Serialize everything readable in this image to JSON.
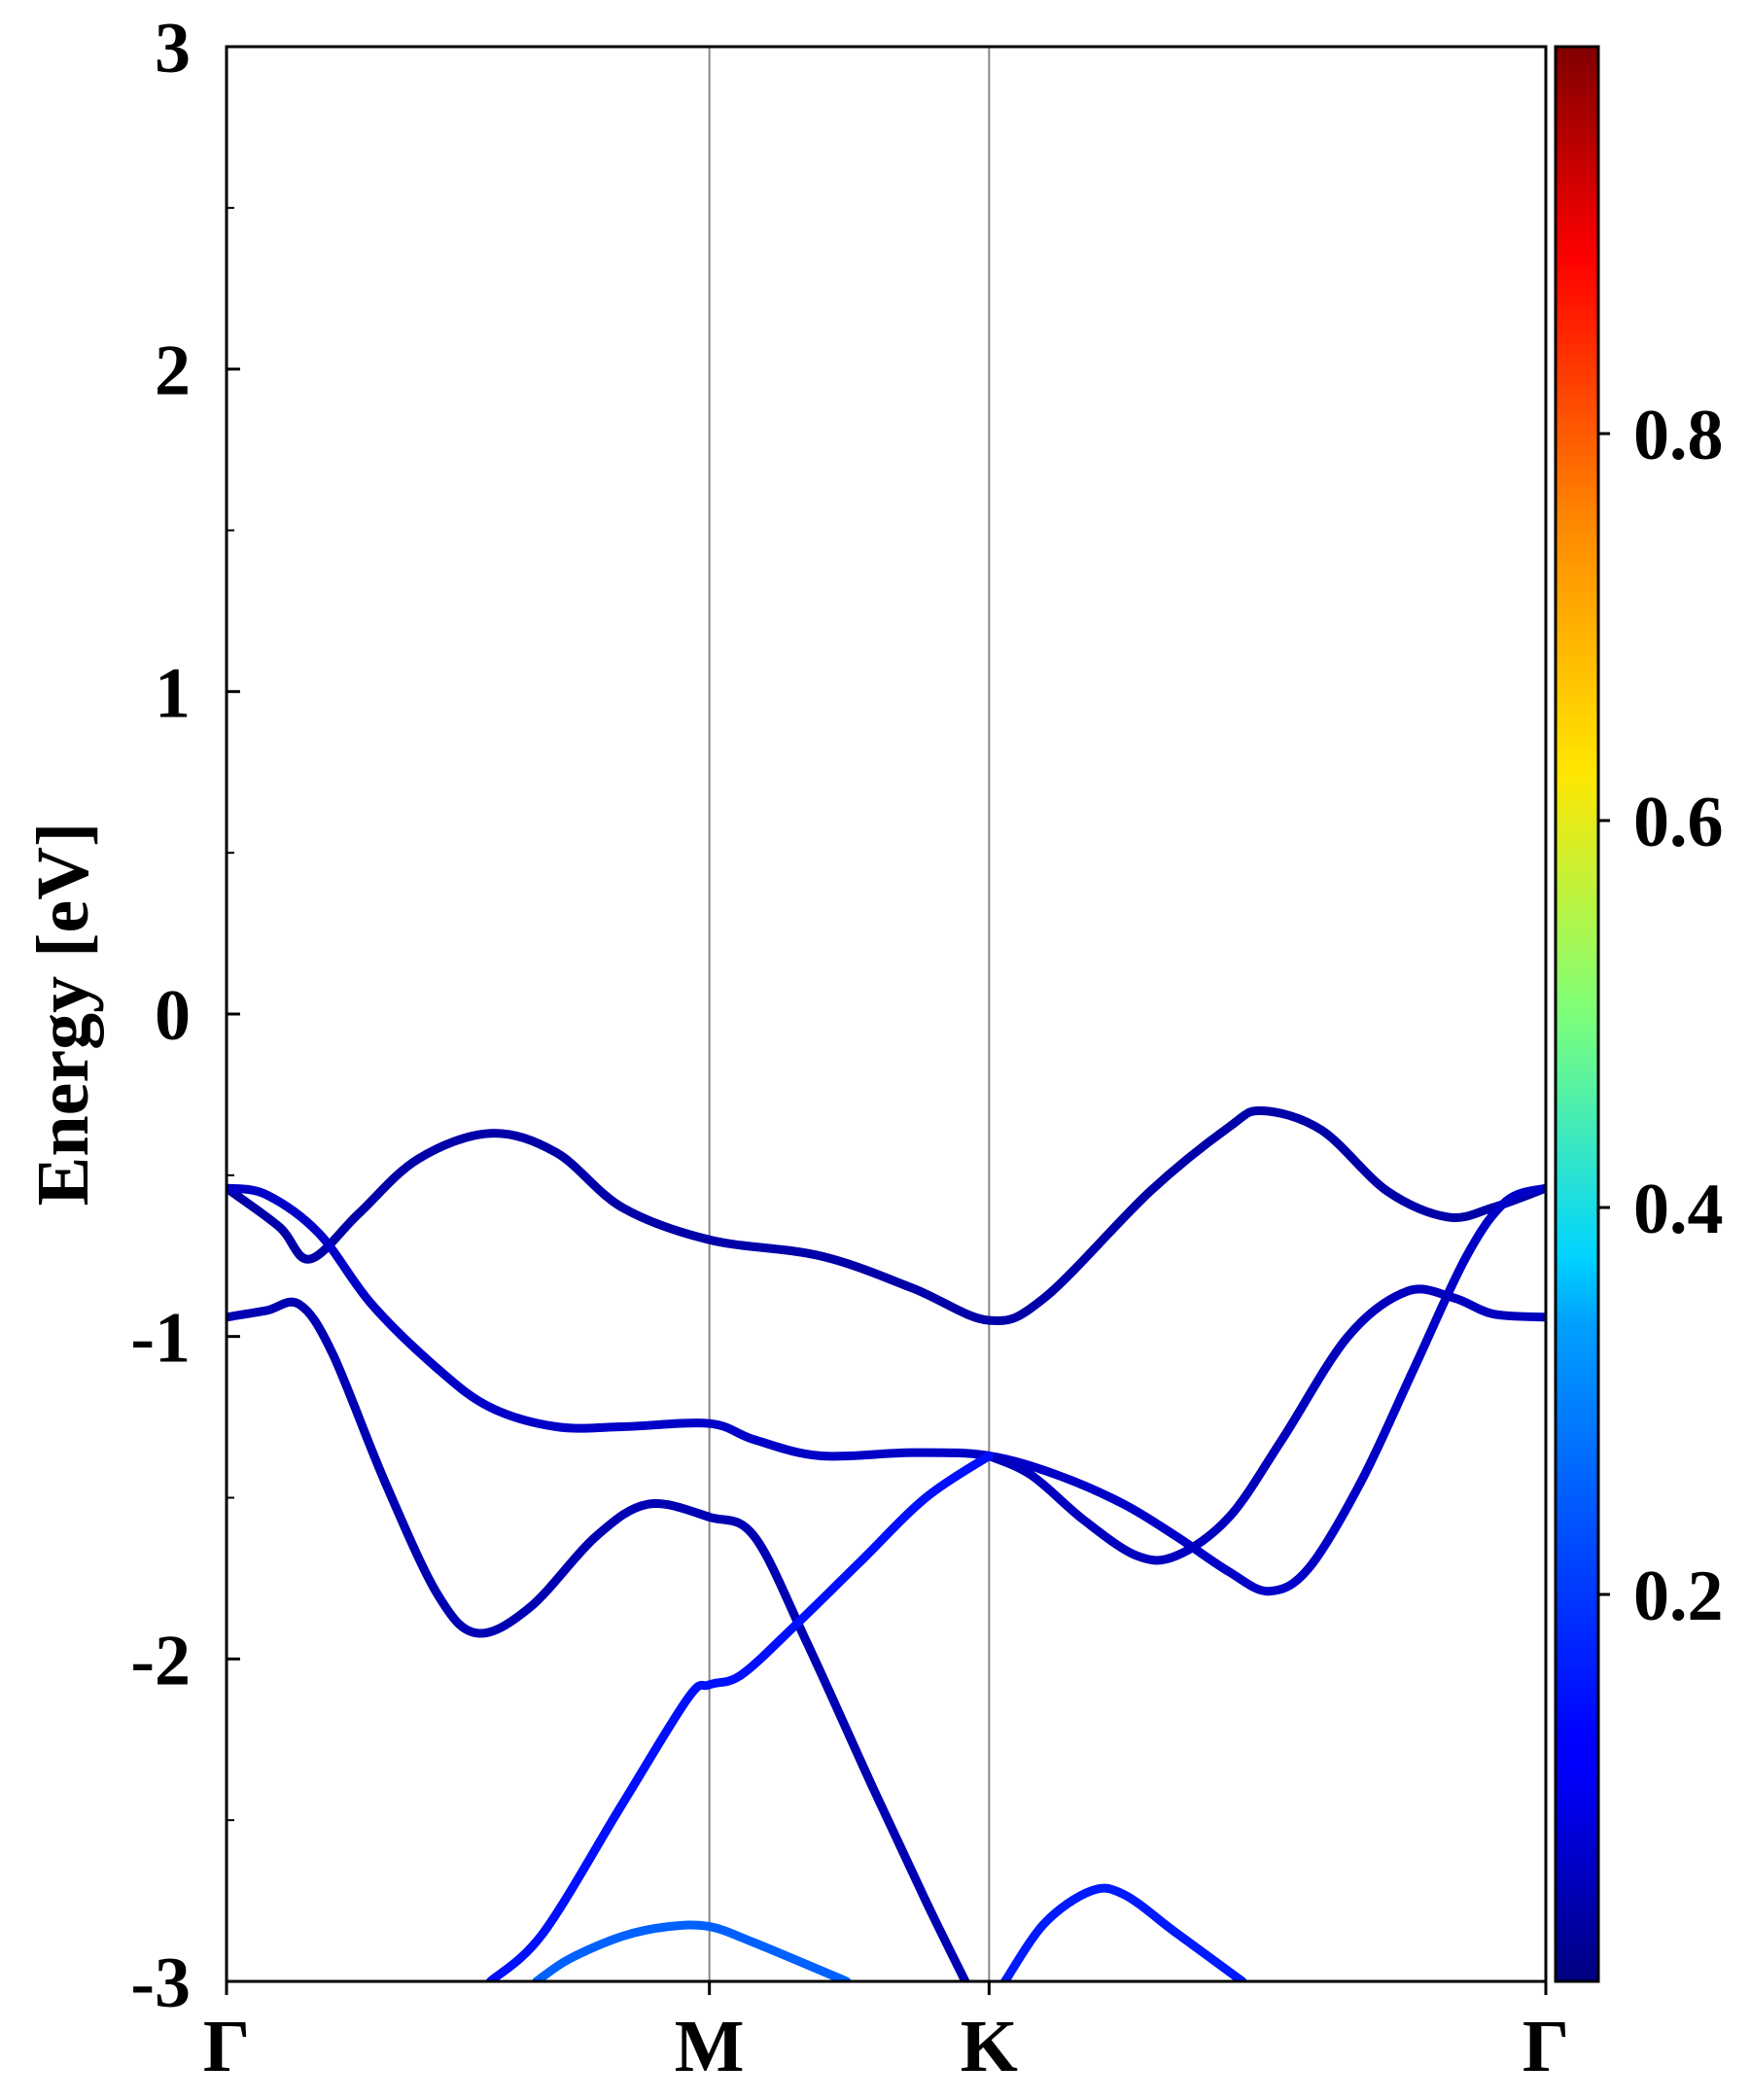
{
  "chart_data": {
    "type": "line",
    "ylabel": "Energy [eV]",
    "ylim": [
      -3,
      3
    ],
    "yticks": [
      "3",
      "2",
      "1",
      "0",
      "-1",
      "-2",
      "-3"
    ],
    "xticks": [
      {
        "label": "Γ",
        "k": 0
      },
      {
        "label": "M",
        "k": 0.366
      },
      {
        "label": "K",
        "k": 0.578
      },
      {
        "label": "Γ",
        "k": 1
      }
    ],
    "colorbar": {
      "range": [
        0,
        1
      ],
      "ticks": [
        "0.2",
        "0.4",
        "0.6",
        "0.8"
      ],
      "colormap": "jet"
    },
    "series": [
      {
        "weight": 0.04,
        "points": [
          [
            0,
            -0.54
          ],
          [
            0.04,
            -0.66
          ],
          [
            0.063,
            -0.76
          ],
          [
            0.1,
            -0.62
          ],
          [
            0.145,
            -0.45
          ],
          [
            0.2,
            -0.37
          ],
          [
            0.25,
            -0.43
          ],
          [
            0.3,
            -0.6
          ],
          [
            0.366,
            -0.7
          ],
          [
            0.45,
            -0.75
          ],
          [
            0.52,
            -0.85
          ],
          [
            0.578,
            -0.95
          ],
          [
            0.62,
            -0.88
          ],
          [
            0.7,
            -0.55
          ],
          [
            0.76,
            -0.35
          ],
          [
            0.785,
            -0.3
          ],
          [
            0.83,
            -0.36
          ],
          [
            0.88,
            -0.55
          ],
          [
            0.926,
            -0.63
          ],
          [
            0.96,
            -0.6
          ],
          [
            1,
            -0.54
          ]
        ]
      },
      {
        "weight": 0.05,
        "points": [
          [
            0,
            -0.94
          ],
          [
            0.03,
            -0.92
          ],
          [
            0.055,
            -0.9
          ],
          [
            0.08,
            -1.05
          ],
          [
            0.12,
            -1.45
          ],
          [
            0.16,
            -1.8
          ],
          [
            0.19,
            -1.92
          ],
          [
            0.23,
            -1.84
          ],
          [
            0.28,
            -1.62
          ],
          [
            0.32,
            -1.52
          ],
          [
            0.366,
            -1.56
          ],
          [
            0.4,
            -1.62
          ],
          [
            0.44,
            -1.95
          ],
          [
            0.49,
            -2.4
          ],
          [
            0.53,
            -2.75
          ],
          [
            0.56,
            -3.0
          ]
        ]
      },
      {
        "weight": 0.07,
        "points": [
          [
            0,
            -0.54
          ],
          [
            0.03,
            -0.56
          ],
          [
            0.07,
            -0.68
          ],
          [
            0.11,
            -0.9
          ],
          [
            0.16,
            -1.1
          ],
          [
            0.2,
            -1.22
          ],
          [
            0.25,
            -1.28
          ],
          [
            0.3,
            -1.28
          ],
          [
            0.366,
            -1.27
          ],
          [
            0.4,
            -1.32
          ],
          [
            0.45,
            -1.37
          ],
          [
            0.52,
            -1.36
          ],
          [
            0.578,
            -1.37
          ],
          [
            0.63,
            -1.43
          ],
          [
            0.68,
            -1.52
          ],
          [
            0.72,
            -1.62
          ],
          [
            0.76,
            -1.73
          ],
          [
            0.79,
            -1.79
          ],
          [
            0.82,
            -1.72
          ],
          [
            0.86,
            -1.45
          ],
          [
            0.9,
            -1.1
          ],
          [
            0.94,
            -0.75
          ],
          [
            0.97,
            -0.58
          ],
          [
            1,
            -0.54
          ]
        ]
      },
      {
        "weight": 0.06,
        "points": [
          [
            0.578,
            -1.37
          ],
          [
            0.61,
            -1.43
          ],
          [
            0.65,
            -1.57
          ],
          [
            0.69,
            -1.68
          ],
          [
            0.72,
            -1.68
          ],
          [
            0.76,
            -1.56
          ],
          [
            0.8,
            -1.32
          ],
          [
            0.85,
            -1.0
          ],
          [
            0.895,
            -0.86
          ],
          [
            0.93,
            -0.88
          ],
          [
            0.96,
            -0.93
          ],
          [
            1,
            -0.94
          ]
        ]
      },
      {
        "weight": 0.14,
        "points": [
          [
            0.2,
            -3.0
          ],
          [
            0.24,
            -2.85
          ],
          [
            0.3,
            -2.45
          ],
          [
            0.35,
            -2.12
          ],
          [
            0.366,
            -2.08
          ],
          [
            0.39,
            -2.05
          ],
          [
            0.43,
            -1.9
          ],
          [
            0.48,
            -1.7
          ],
          [
            0.53,
            -1.5
          ],
          [
            0.578,
            -1.37
          ]
        ]
      },
      {
        "weight": 0.15,
        "points": [
          [
            0.59,
            -3.0
          ],
          [
            0.62,
            -2.82
          ],
          [
            0.655,
            -2.72
          ],
          [
            0.68,
            -2.73
          ],
          [
            0.72,
            -2.85
          ],
          [
            0.77,
            -3.0
          ]
        ]
      },
      {
        "weight": 0.22,
        "points": [
          [
            0.235,
            -3.0
          ],
          [
            0.26,
            -2.93
          ],
          [
            0.3,
            -2.86
          ],
          [
            0.335,
            -2.83
          ],
          [
            0.366,
            -2.83
          ],
          [
            0.4,
            -2.88
          ],
          [
            0.47,
            -3.0
          ]
        ]
      }
    ]
  }
}
